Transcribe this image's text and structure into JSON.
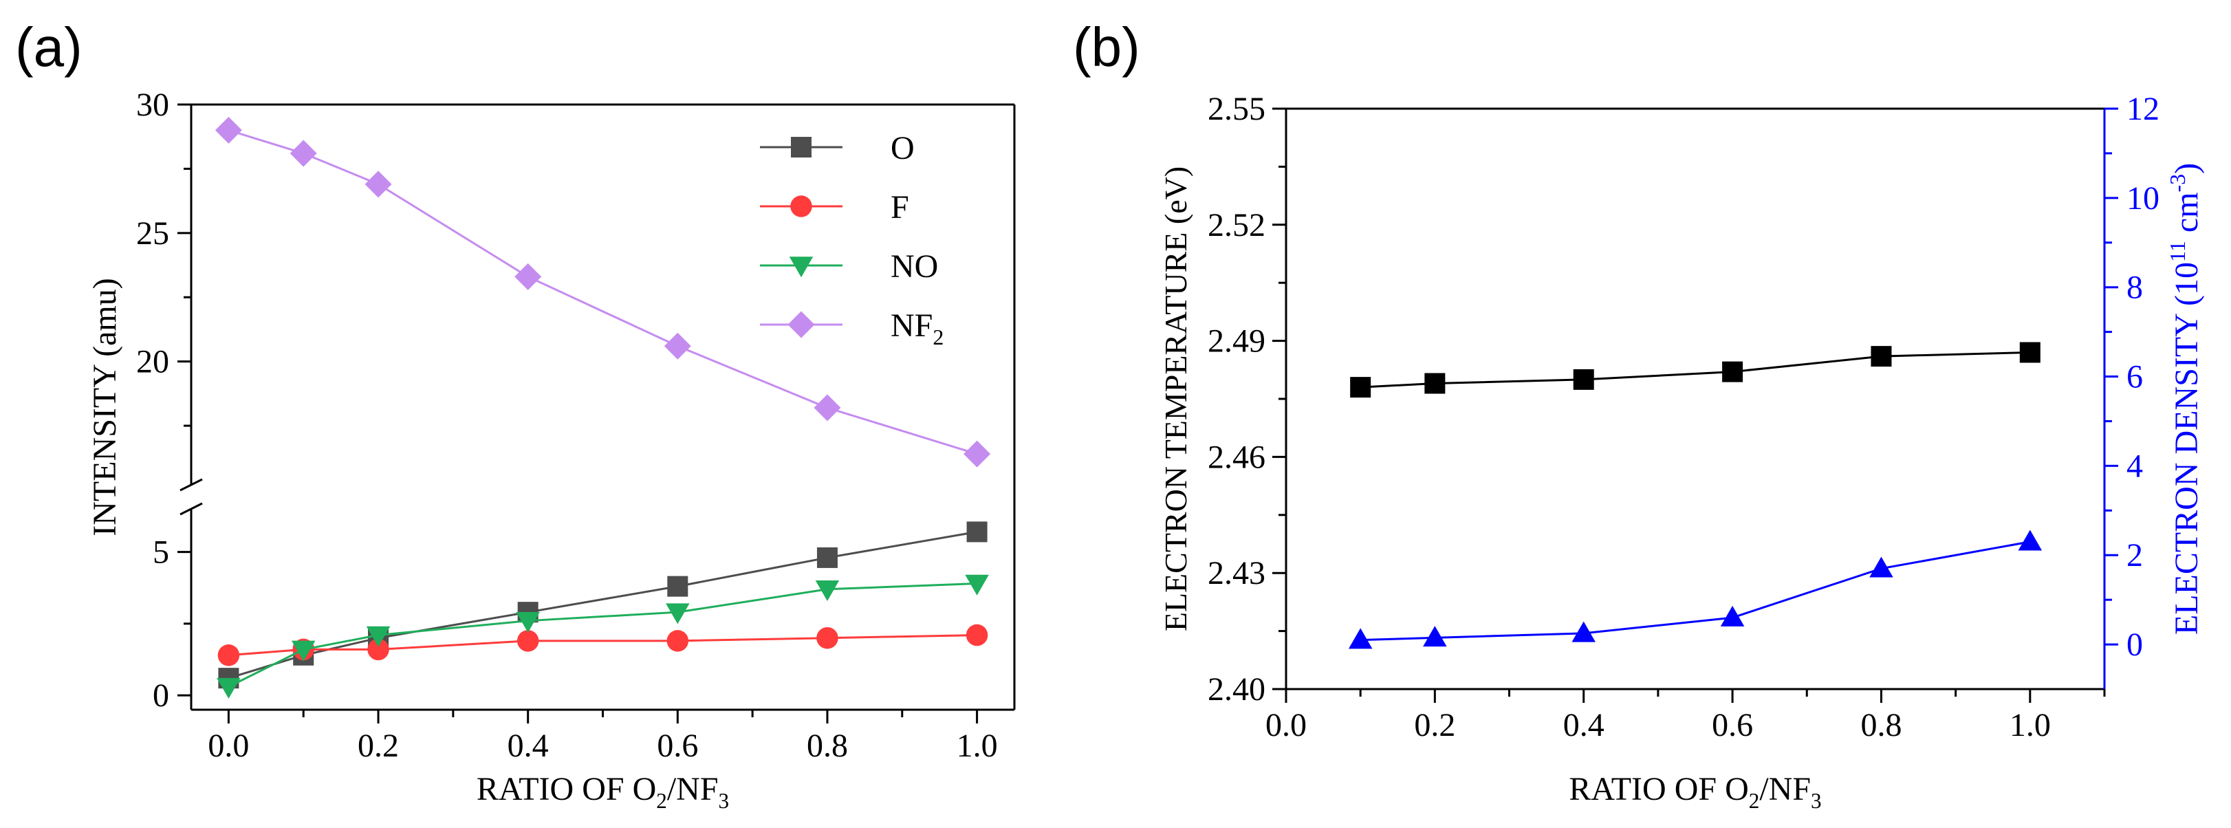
{
  "chart_data": [
    {
      "panel_label": "(a)",
      "type": "line",
      "xlabel": {
        "text": "RATIO OF O",
        "sub1": "2",
        "mid": "/NF",
        "sub2": "3"
      },
      "ylabel": "INTENSITY (amu)",
      "x_ticks": [
        "0.0",
        "0.2",
        "0.4",
        "0.6",
        "0.8",
        "1.0"
      ],
      "y_ticks_lower": [
        "0",
        "5"
      ],
      "y_ticks_upper": [
        "20",
        "25",
        "30"
      ],
      "xlim": [
        -0.05,
        1.05
      ],
      "ylim_lower": [
        -0.5,
        6.5
      ],
      "ylim_upper": [
        15.2,
        30
      ],
      "axis_break": "y between 6.5 and 15.2",
      "legend_position": "top-right",
      "x": [
        0.0,
        0.1,
        0.2,
        0.4,
        0.6,
        0.8,
        1.0
      ],
      "series": [
        {
          "name": "O",
          "name_sub": "",
          "color": "#4d4d4d",
          "marker": "square",
          "values": [
            0.6,
            1.4,
            2.0,
            2.9,
            3.8,
            4.8,
            5.7
          ]
        },
        {
          "name": "F",
          "name_sub": "",
          "color": "#ff3b3b",
          "marker": "circle",
          "values": [
            1.4,
            1.6,
            1.6,
            1.9,
            1.9,
            2.0,
            2.1
          ]
        },
        {
          "name": "NO",
          "name_sub": "",
          "color": "#1fae5c",
          "marker": "triangle-down",
          "values": [
            0.3,
            1.6,
            2.1,
            2.6,
            2.9,
            3.7,
            3.9
          ]
        },
        {
          "name": "NF",
          "name_sub": "2",
          "color": "#c58cf0",
          "marker": "diamond",
          "values": [
            29.0,
            28.1,
            26.9,
            23.3,
            20.6,
            18.2,
            16.4
          ]
        }
      ]
    },
    {
      "panel_label": "(b)",
      "type": "line",
      "xlabel": {
        "text": "RATIO OF O",
        "sub1": "2",
        "mid": "/NF",
        "sub2": "3"
      },
      "ylabel_left": "ELECTRON TEMPERATURE (eV)",
      "ylabel_right": {
        "text": "ELECTRON DENSITY (10",
        "sup1": "11",
        "mid": " cm",
        "sup2": "-3",
        "end": ")"
      },
      "x_ticks": [
        "0.0",
        "0.2",
        "0.4",
        "0.6",
        "0.8",
        "1.0"
      ],
      "y_left_ticks": [
        "2.40",
        "2.43",
        "2.46",
        "2.49",
        "2.52",
        "2.55"
      ],
      "y_right_ticks": [
        "0",
        "2",
        "4",
        "6",
        "8",
        "10",
        "12"
      ],
      "xlim": [
        0.0,
        1.1
      ],
      "ylim_left": [
        2.4,
        2.55
      ],
      "ylim_right": [
        -1,
        12
      ],
      "x": [
        0.1,
        0.2,
        0.4,
        0.6,
        0.8,
        1.0
      ],
      "series": [
        {
          "name": "",
          "axis": "left",
          "color": "#000000",
          "marker": "square",
          "values": [
            2.478,
            2.479,
            2.48,
            2.482,
            2.486,
            2.487
          ]
        },
        {
          "name": "",
          "axis": "right",
          "color": "#0000ff",
          "marker": "triangle-up",
          "values": [
            0.1,
            0.15,
            0.25,
            0.6,
            1.7,
            2.3
          ]
        }
      ]
    }
  ]
}
